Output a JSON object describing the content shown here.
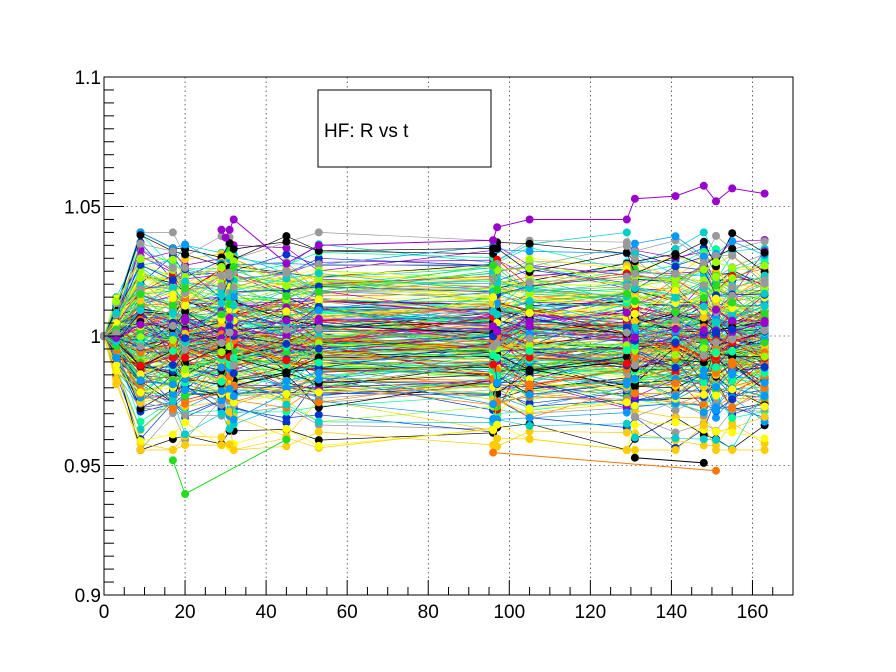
{
  "chart_data": {
    "type": "line",
    "title": "",
    "xlabel": "",
    "ylabel": "",
    "legend": {
      "label": "HF: R vs t",
      "placement": "top-center"
    },
    "xlim": [
      0,
      170
    ],
    "ylim": [
      0.9,
      1.1
    ],
    "x_ticks": [
      0,
      20,
      40,
      60,
      80,
      100,
      120,
      140,
      160
    ],
    "x_tick_labels": [
      "0",
      "20",
      "40",
      "60",
      "80",
      "100",
      "120",
      "140",
      "160"
    ],
    "y_ticks": [
      0.9,
      0.95,
      1.0,
      1.05,
      1.1
    ],
    "y_tick_labels": [
      "0.9",
      "0.95",
      "1",
      "1.05",
      "1.1"
    ],
    "grid": true,
    "time_points": [
      0,
      3,
      9,
      17,
      20,
      29,
      31,
      32,
      45,
      53,
      96,
      97,
      105,
      129,
      131,
      141,
      148,
      151,
      155,
      163
    ],
    "series_count": "many (several hundred channels)",
    "highlighted_series": [
      {
        "color": "#9900cc",
        "x": [
          29,
          30,
          31,
          32,
          45,
          53,
          96,
          97,
          105,
          129,
          131,
          141,
          148,
          151,
          155,
          163
        ],
        "y": [
          1.041,
          1.038,
          1.041,
          1.045,
          1.028,
          1.035,
          1.037,
          1.042,
          1.045,
          1.045,
          1.053,
          1.054,
          1.058,
          1.052,
          1.057,
          1.055
        ]
      },
      {
        "color": "#22dd22",
        "x": [
          17,
          20,
          45
        ],
        "y": [
          0.952,
          0.939,
          0.96
        ]
      },
      {
        "color": "#ff7700",
        "x": [
          96,
          151
        ],
        "y": [
          0.955,
          0.948
        ]
      },
      {
        "color": "#000000",
        "x": [
          131,
          148
        ],
        "y": [
          0.953,
          0.951
        ]
      }
    ],
    "palette": [
      "#000000",
      "#ff0000",
      "#ff7700",
      "#ffcc00",
      "#ffff00",
      "#99ff00",
      "#22dd22",
      "#00ff99",
      "#00cccc",
      "#0099ff",
      "#0033cc",
      "#9900cc",
      "#999999",
      "#ffffff"
    ]
  }
}
